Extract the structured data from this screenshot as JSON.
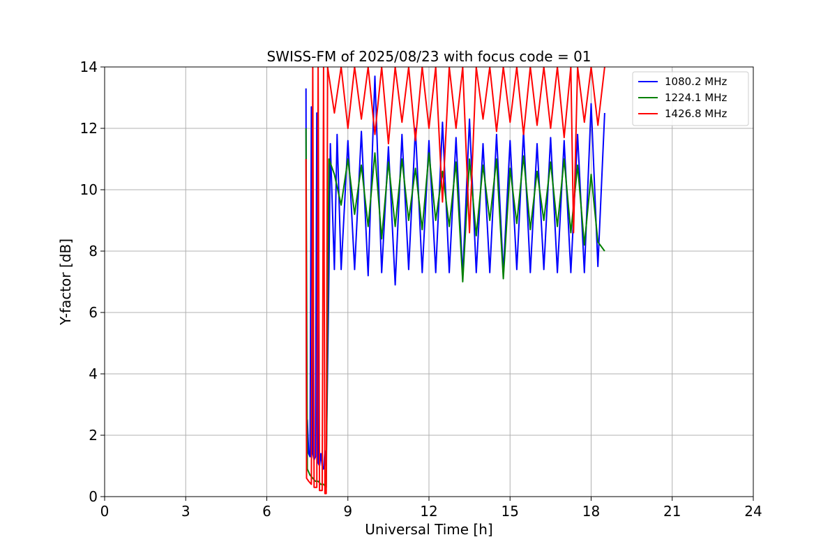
{
  "chart_data": {
    "type": "line",
    "title": "SWISS-FM of 2025/08/23 with focus code = 01",
    "xlabel": "Universal Time [h]",
    "ylabel": "Y-factor [dB]",
    "xlim": [
      0,
      24
    ],
    "ylim": [
      0,
      14
    ],
    "xticks": [
      0,
      3,
      6,
      9,
      12,
      15,
      18,
      21,
      24
    ],
    "yticks": [
      0,
      2,
      4,
      6,
      8,
      10,
      12,
      14
    ],
    "grid": true,
    "legend_position": "top-right",
    "series": [
      {
        "name": "1080.2 MHz",
        "color": "#0000ff",
        "x": [
          7.45,
          7.47,
          7.5,
          7.55,
          7.6,
          7.65,
          7.7,
          7.75,
          7.8,
          7.85,
          7.9,
          7.95,
          8.0,
          8.05,
          8.1,
          8.15,
          8.2,
          8.3,
          8.35,
          8.5,
          8.6,
          8.75,
          9.0,
          9.25,
          9.5,
          9.75,
          10.0,
          10.25,
          10.5,
          10.75,
          11.0,
          11.25,
          11.5,
          11.75,
          12.0,
          12.25,
          12.5,
          12.75,
          13.0,
          13.25,
          13.5,
          13.75,
          14.0,
          14.25,
          14.5,
          14.75,
          15.0,
          15.25,
          15.5,
          15.75,
          16.0,
          16.25,
          16.5,
          16.75,
          17.0,
          17.25,
          17.5,
          17.75,
          18.0,
          18.25,
          18.5
        ],
        "y": [
          13.3,
          1.6,
          2.5,
          1.4,
          1.3,
          12.7,
          1.4,
          1.2,
          1.3,
          12.5,
          1.1,
          1.0,
          1.4,
          1.0,
          0.9,
          1.5,
          1.0,
          7.3,
          11.5,
          7.4,
          11.8,
          7.4,
          11.6,
          7.4,
          11.9,
          7.2,
          13.7,
          7.3,
          11.4,
          6.9,
          11.8,
          7.4,
          12.0,
          7.3,
          11.6,
          7.3,
          12.2,
          7.3,
          11.7,
          7.2,
          12.3,
          7.3,
          11.5,
          7.3,
          11.8,
          7.3,
          11.6,
          7.4,
          11.9,
          7.3,
          11.5,
          7.4,
          11.7,
          7.3,
          11.6,
          7.3,
          11.8,
          7.3,
          12.8,
          7.5,
          12.5
        ]
      },
      {
        "name": "1224.1 MHz",
        "color": "#008000",
        "x": [
          7.45,
          7.5,
          7.6,
          7.7,
          7.8,
          7.9,
          8.0,
          8.1,
          8.2,
          8.3,
          8.5,
          8.75,
          9.0,
          9.25,
          9.5,
          9.75,
          10.0,
          10.25,
          10.5,
          10.75,
          11.0,
          11.25,
          11.5,
          11.75,
          12.0,
          12.25,
          12.5,
          12.75,
          13.0,
          13.25,
          13.5,
          13.75,
          14.0,
          14.25,
          14.5,
          14.75,
          15.0,
          15.25,
          15.5,
          15.75,
          16.0,
          16.25,
          16.5,
          16.75,
          17.0,
          17.25,
          17.5,
          17.75,
          18.0,
          18.25,
          18.5
        ],
        "y": [
          12.0,
          0.9,
          0.7,
          0.6,
          0.5,
          0.5,
          0.4,
          0.4,
          0.3,
          11.0,
          10.5,
          9.5,
          11.0,
          9.2,
          10.8,
          8.8,
          11.2,
          8.4,
          10.9,
          8.8,
          11.0,
          9.0,
          10.7,
          8.7,
          11.2,
          9.0,
          10.6,
          8.8,
          10.9,
          7.0,
          11.0,
          8.5,
          10.8,
          9.0,
          11.0,
          7.1,
          10.7,
          8.9,
          11.1,
          8.7,
          10.6,
          9.0,
          10.9,
          8.8,
          11.0,
          8.6,
          10.8,
          8.2,
          10.5,
          8.3,
          8.0
        ]
      },
      {
        "name": "1426.8 MHz",
        "color": "#ff0000",
        "x": [
          7.45,
          7.47,
          7.55,
          7.65,
          7.7,
          7.75,
          7.85,
          7.9,
          7.95,
          8.05,
          8.1,
          8.15,
          8.2,
          8.25,
          8.5,
          8.75,
          9.0,
          9.25,
          9.5,
          9.75,
          10.0,
          10.25,
          10.5,
          10.75,
          11.0,
          11.25,
          11.5,
          11.75,
          12.0,
          12.25,
          12.5,
          12.75,
          13.0,
          13.25,
          13.5,
          13.75,
          14.0,
          14.25,
          14.5,
          14.75,
          15.0,
          15.25,
          15.5,
          15.75,
          16.0,
          16.25,
          16.5,
          16.75,
          17.0,
          17.25,
          17.35,
          17.5,
          17.75,
          18.0,
          18.25,
          18.5
        ],
        "y": [
          11.0,
          0.6,
          0.5,
          0.4,
          14.0,
          0.3,
          0.3,
          14.0,
          0.2,
          0.2,
          14.0,
          0.1,
          0.1,
          14.0,
          12.5,
          14.0,
          12.0,
          14.0,
          12.3,
          14.0,
          11.8,
          14.0,
          11.5,
          14.0,
          12.2,
          14.0,
          11.6,
          14.0,
          12.0,
          14.0,
          9.6,
          14.0,
          12.0,
          14.0,
          8.6,
          14.0,
          12.3,
          14.0,
          11.9,
          14.0,
          12.2,
          14.0,
          11.8,
          14.0,
          12.1,
          14.0,
          12.0,
          14.0,
          11.7,
          14.0,
          8.6,
          14.0,
          12.2,
          14.0,
          12.1,
          14.0
        ]
      }
    ]
  }
}
